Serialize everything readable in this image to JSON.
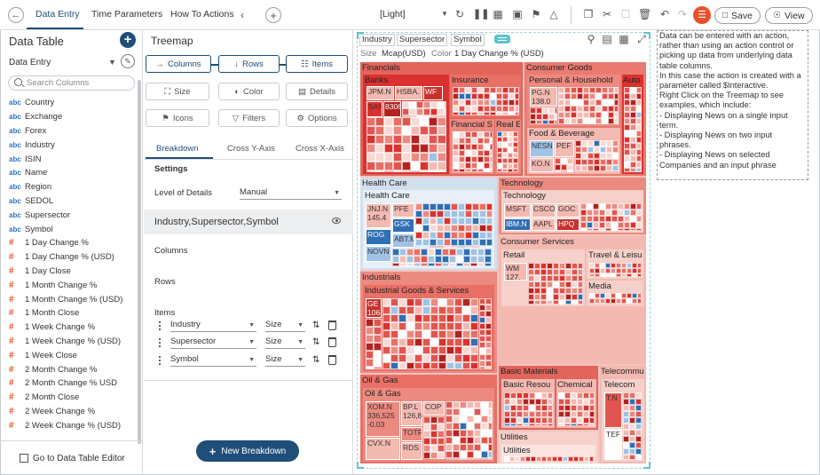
{
  "header": {
    "tabs": [
      "Data Entry",
      "Time Parameters",
      "How To Actions"
    ],
    "theme": "[Light]",
    "save_label": "Save",
    "view_label": "View"
  },
  "left_panel": {
    "title": "Data Table",
    "subtitle": "Data Entry",
    "search_placeholder": "Search Columns",
    "columns": [
      {
        "type": "abc",
        "name": "Country"
      },
      {
        "type": "abc",
        "name": "Exchange"
      },
      {
        "type": "abc",
        "name": "Forex"
      },
      {
        "type": "abc",
        "name": "Industry"
      },
      {
        "type": "abc",
        "name": "ISIN"
      },
      {
        "type": "abc",
        "name": "Name"
      },
      {
        "type": "abc",
        "name": "Region"
      },
      {
        "type": "abc",
        "name": "SEDOL"
      },
      {
        "type": "abc",
        "name": "Supersector"
      },
      {
        "type": "abc",
        "name": "Symbol"
      },
      {
        "type": "#",
        "name": "1 Day Change %"
      },
      {
        "type": "#",
        "name": "1 Day Change % (USD)"
      },
      {
        "type": "#",
        "name": "1 Day Close"
      },
      {
        "type": "#",
        "name": "1 Month Change %"
      },
      {
        "type": "#",
        "name": "1 Month Change % (USD)"
      },
      {
        "type": "#",
        "name": "1 Month Close"
      },
      {
        "type": "#",
        "name": "1 Week Change %"
      },
      {
        "type": "#",
        "name": "1 Week Change % (USD)"
      },
      {
        "type": "#",
        "name": "1 Week Close"
      },
      {
        "type": "#",
        "name": "2 Month Change %"
      },
      {
        "type": "#",
        "name": "2 Month Change % USD"
      },
      {
        "type": "#",
        "name": "2 Month Close"
      },
      {
        "type": "#",
        "name": "2 Week Change %"
      },
      {
        "type": "#",
        "name": "2 Week Change % (USD)"
      }
    ],
    "footer_label": "Go to Data Table Editor"
  },
  "middle_panel": {
    "title": "Treemap",
    "buttons": {
      "columns": "Columns",
      "rows": "Rows",
      "items": "Items",
      "size": "Size",
      "color": "Color",
      "details": "Details",
      "icons": "Icons",
      "filters": "Filters",
      "options": "Options"
    },
    "subtabs": [
      "Breakdown",
      "Cross Y-Axis",
      "Cross X-Axis"
    ],
    "settings_label": "Settings",
    "level_of_details_label": "Level of Details",
    "level_of_details_value": "Manual",
    "group_label": "Industry,Supersector,Symbol",
    "columns_label": "Columns",
    "rows_label": "Rows",
    "items_label": "Items",
    "items": [
      {
        "field": "Industry",
        "agg": "Size"
      },
      {
        "field": "Supersector",
        "agg": "Size"
      },
      {
        "field": "Symbol",
        "agg": "Size"
      }
    ],
    "new_breakdown_label": "New Breakdown"
  },
  "viz": {
    "breadcrumb": [
      "Industry",
      "Supersector",
      "Symbol"
    ],
    "size_label": "Size",
    "size_value": "Mcap(USD)",
    "color_label": "Color",
    "color_value": "1 Day Change % (USD)",
    "labels": {
      "financials": "Financials",
      "banks": "Banks",
      "insurance": "Insurance",
      "fin_services": "Financial S",
      "real_estate": "Real E",
      "consumer_goods": "Consumer Goods",
      "personal_household": "Personal & Household",
      "auto": "Auto",
      "food_beverage": "Food & Beverage",
      "health_care_group": "Health Care",
      "health_care_sub": "Health Care",
      "technology_group": "Technology",
      "technology_sub": "Technology",
      "consumer_services": "Consumer Services",
      "retail": "Retail",
      "travel_leisure": "Travel & Leisu",
      "media": "Media",
      "industrials": "Industrials",
      "industrial_goods": "Industrial Goods & Services",
      "basic_materials": "Basic Materials",
      "basic_resources": "Basic Resou",
      "chemicals": "Chemical",
      "telecom_group": "Telecommu",
      "telecom_sub": "Telecom",
      "oil_gas_group": "Oil & Gas",
      "oil_gas_sub": "Oil & Gas",
      "utilities_group": "Utilities",
      "utilities_sub": "Utilities"
    },
    "cell_labels": {
      "jpm": "JPM.N",
      "hsba": "HSBA.",
      "wf": "WF",
      "san": "SAN",
      "n8306": "8306",
      "pg": "PG.N\n138.0",
      "nesn": "NESN",
      "pep": "PEF",
      "ko": "KO.N",
      "jnj": "JNJ.N\n145.4",
      "pfe": "PFE",
      "gsk": "GSK",
      "rog": "ROG",
      "abt": "ABT.M",
      "novn": "NOVN",
      "msft": "MSFT",
      "csco": "CSCO",
      "goog": "GOC",
      "ibm": "IBM.N",
      "aapl": "AAPL",
      "hpq": "HPQ",
      "wmt": "WM\n127.",
      "ge": "GE\n106",
      "xom": "XOM.N\n336,525\n-0.03",
      "bp": "BP.L\n126,8",
      "cop": "COP",
      "tot": "TOTF",
      "cvx": "CVX.N",
      "rds": "RDS",
      "tn": "T.N",
      "tef": "TEF"
    }
  },
  "notes": {
    "text": "Data can be entered with an action, rather than using an action control or picking up data from underlying data table columns.\nIn this case the action is created with a parameter called $Interactive.\nRight Click on the Treemap to see examples, which include:\n- Displaying News on a single input term.\n- Displaying News on two input phrases.\n- Displaying News on selected Companies and an input phrase"
  },
  "colors": {
    "accent": "#1f4e79",
    "treemap_base": "#f3c4bc",
    "strong_red": "#d9322e",
    "mid_red": "#e87066",
    "light_red": "#f6d0ca",
    "strong_blue": "#2f6fb5",
    "light_blue": "#b9d2ea",
    "selection": "#5ec3cf"
  }
}
